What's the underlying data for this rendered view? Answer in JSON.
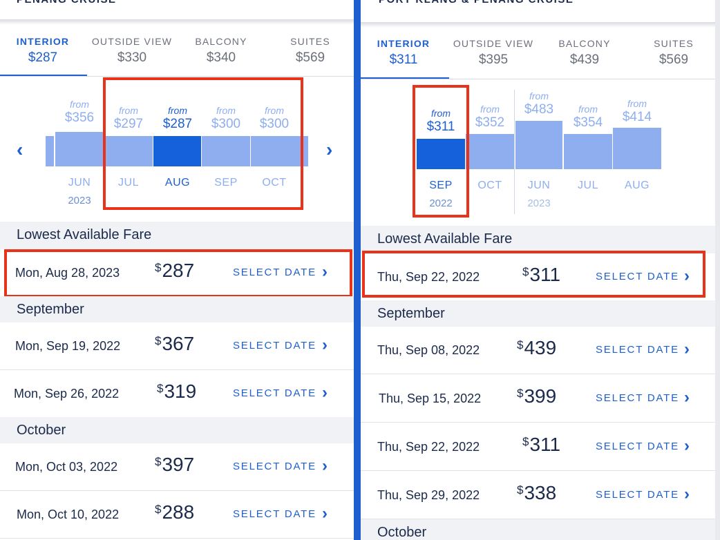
{
  "left": {
    "cruise_title": "PENANG CRUISE",
    "tabs": [
      {
        "name": "INTERIOR",
        "price": "$287",
        "active": true
      },
      {
        "name": "OUTSIDE VIEW",
        "price": "$330",
        "active": false
      },
      {
        "name": "BALCONY",
        "price": "$340",
        "active": false
      },
      {
        "name": "SUITES",
        "price": "$569",
        "active": false
      }
    ],
    "calendar": {
      "from_word": "from",
      "months": [
        {
          "month": "JUN",
          "year": "2023",
          "price": "$356",
          "level": 0.69
        },
        {
          "month": "JUL",
          "price": "$297",
          "level": 0.61
        },
        {
          "month": "AUG",
          "price": "$287",
          "level": 0.61,
          "selected": true
        },
        {
          "month": "SEP",
          "price": "$300",
          "level": 0.61
        },
        {
          "month": "OCT",
          "price": "$300",
          "level": 0.61
        }
      ]
    },
    "lowest": {
      "header": "Lowest Available Fare",
      "date": "Mon, Aug 28, 2023",
      "price": "287",
      "select": "SELECT DATE"
    },
    "sections": [
      {
        "header": "September",
        "rows": [
          {
            "date": "Mon, Sep 19, 2022",
            "price": "367",
            "select": "SELECT DATE"
          },
          {
            "date": "Mon, Sep 26, 2022",
            "price": "319",
            "select": "SELECT DATE"
          }
        ]
      },
      {
        "header": "October",
        "rows": [
          {
            "date": "Mon, Oct 03, 2022",
            "price": "397",
            "select": "SELECT DATE"
          },
          {
            "date": "Mon, Oct 10, 2022",
            "price": "288",
            "select": "SELECT DATE"
          }
        ]
      }
    ]
  },
  "right": {
    "cruise_title": "PORT KLANG & PENANG CRUISE",
    "tabs": [
      {
        "name": "INTERIOR",
        "price": "$311",
        "active": true
      },
      {
        "name": "OUTSIDE VIEW",
        "price": "$395",
        "active": false
      },
      {
        "name": "BALCONY",
        "price": "$439",
        "active": false
      },
      {
        "name": "SUITES",
        "price": "$569",
        "active": false
      }
    ],
    "calendar": {
      "from_word": "from",
      "months": [
        {
          "month": "SEP",
          "year": "2022",
          "price": "$311",
          "level": 0.42,
          "selected": true
        },
        {
          "month": "OCT",
          "price": "$352",
          "level": 0.49
        },
        {
          "month": "JUN",
          "year": "2023",
          "price": "$483",
          "level": 0.67
        },
        {
          "month": "JUL",
          "price": "$354",
          "level": 0.49
        },
        {
          "month": "AUG",
          "price": "$414",
          "level": 0.58
        }
      ]
    },
    "lowest": {
      "header": "Lowest Available Fare",
      "date": "Thu, Sep 22, 2022",
      "price": "311",
      "select": "SELECT DATE"
    },
    "sections": [
      {
        "header": "September",
        "rows": [
          {
            "date": "Thu, Sep 08, 2022",
            "price": "439",
            "select": "SELECT DATE"
          },
          {
            "date": "Thu, Sep 15, 2022",
            "price": "399",
            "select": "SELECT DATE"
          },
          {
            "date": "Thu, Sep 22, 2022",
            "price": "311",
            "select": "SELECT DATE"
          },
          {
            "date": "Thu, Sep 29, 2022",
            "price": "338",
            "select": "SELECT DATE"
          }
        ]
      },
      {
        "header": "October",
        "rows": []
      }
    ]
  },
  "colors": {
    "accent": "#1e5fd0",
    "bar": "#8eaef0",
    "bar_selected": "#1560db",
    "highlight": "#e8321a",
    "divider": "#1e5fd0"
  }
}
